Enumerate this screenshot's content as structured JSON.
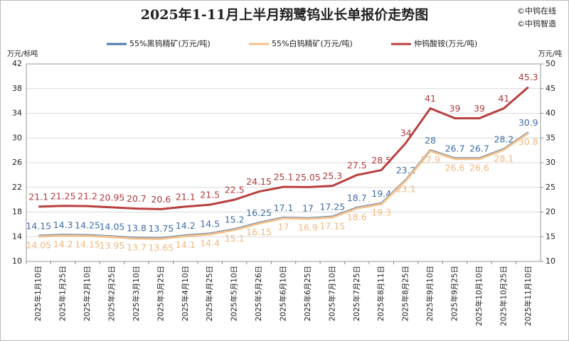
{
  "chart_data": {
    "type": "line",
    "title": "2025年1-11月上半月翔鹭钨业长单报价走势图",
    "watermarks": [
      "©中钨在线",
      "©中钨智造"
    ],
    "y_label": "万元/标吨",
    "y2_label": "万元/吨",
    "categories": [
      "2025年1月10日",
      "2025年1月25日",
      "2025年2月10日",
      "2025年2月25日",
      "2025年3月10日",
      "2025年3月25日",
      "2025年4月10日",
      "2025年4月25日",
      "2025年5月10日",
      "2025年5月26日",
      "2025年6月10日",
      "2025年6月25日",
      "2025年7月10日",
      "2025年7月25日",
      "2025年8月11日",
      "2025年8月25日",
      "2025年9月10日",
      "2025年9月25日",
      "2025年10月10日",
      "2025年10月25日",
      "2025年11月10日"
    ],
    "series": [
      {
        "name": "55%黑钨精矿(万元/吨)",
        "color": "#4a78ae",
        "label_color": "#3d6ea6",
        "label_side": "above",
        "values": [
          14.15,
          14.3,
          14.25,
          14.05,
          13.8,
          13.75,
          14.2,
          14.5,
          15.2,
          16.25,
          17.1,
          17,
          17.25,
          18.7,
          19.4,
          23.2,
          28,
          26.7,
          26.7,
          28.2,
          30.9
        ]
      },
      {
        "name": "55%白钨精矿(万元/吨)",
        "color": "#f4c08c",
        "label_color": "#f0b880",
        "label_side": "below",
        "values": [
          14.05,
          14.2,
          14.15,
          13.95,
          13.7,
          13.65,
          14.1,
          14.4,
          15.1,
          16.15,
          17,
          16.9,
          17.15,
          18.6,
          19.3,
          23.1,
          27.9,
          26.6,
          26.6,
          28.1,
          30.8
        ]
      },
      {
        "name": "仲钨酸铵(万元/吨)",
        "color": "#b8403f",
        "label_color": "#b03a3a",
        "label_side": "above",
        "axis": "y2",
        "values": [
          21.1,
          21.25,
          21.2,
          20.95,
          20.7,
          20.6,
          21.1,
          21.5,
          22.5,
          24.15,
          25.1,
          25.05,
          25.3,
          27.5,
          28.5,
          34,
          41,
          39,
          39,
          41,
          45.3
        ]
      }
    ],
    "ylim": [
      10,
      42
    ],
    "yticks": [
      10,
      14,
      18,
      22,
      26,
      30,
      34,
      38,
      42
    ],
    "y2lim": [
      10,
      50
    ],
    "y2ticks": [
      10,
      15,
      20,
      25,
      30,
      35,
      40,
      45,
      50
    ],
    "grid": true
  }
}
